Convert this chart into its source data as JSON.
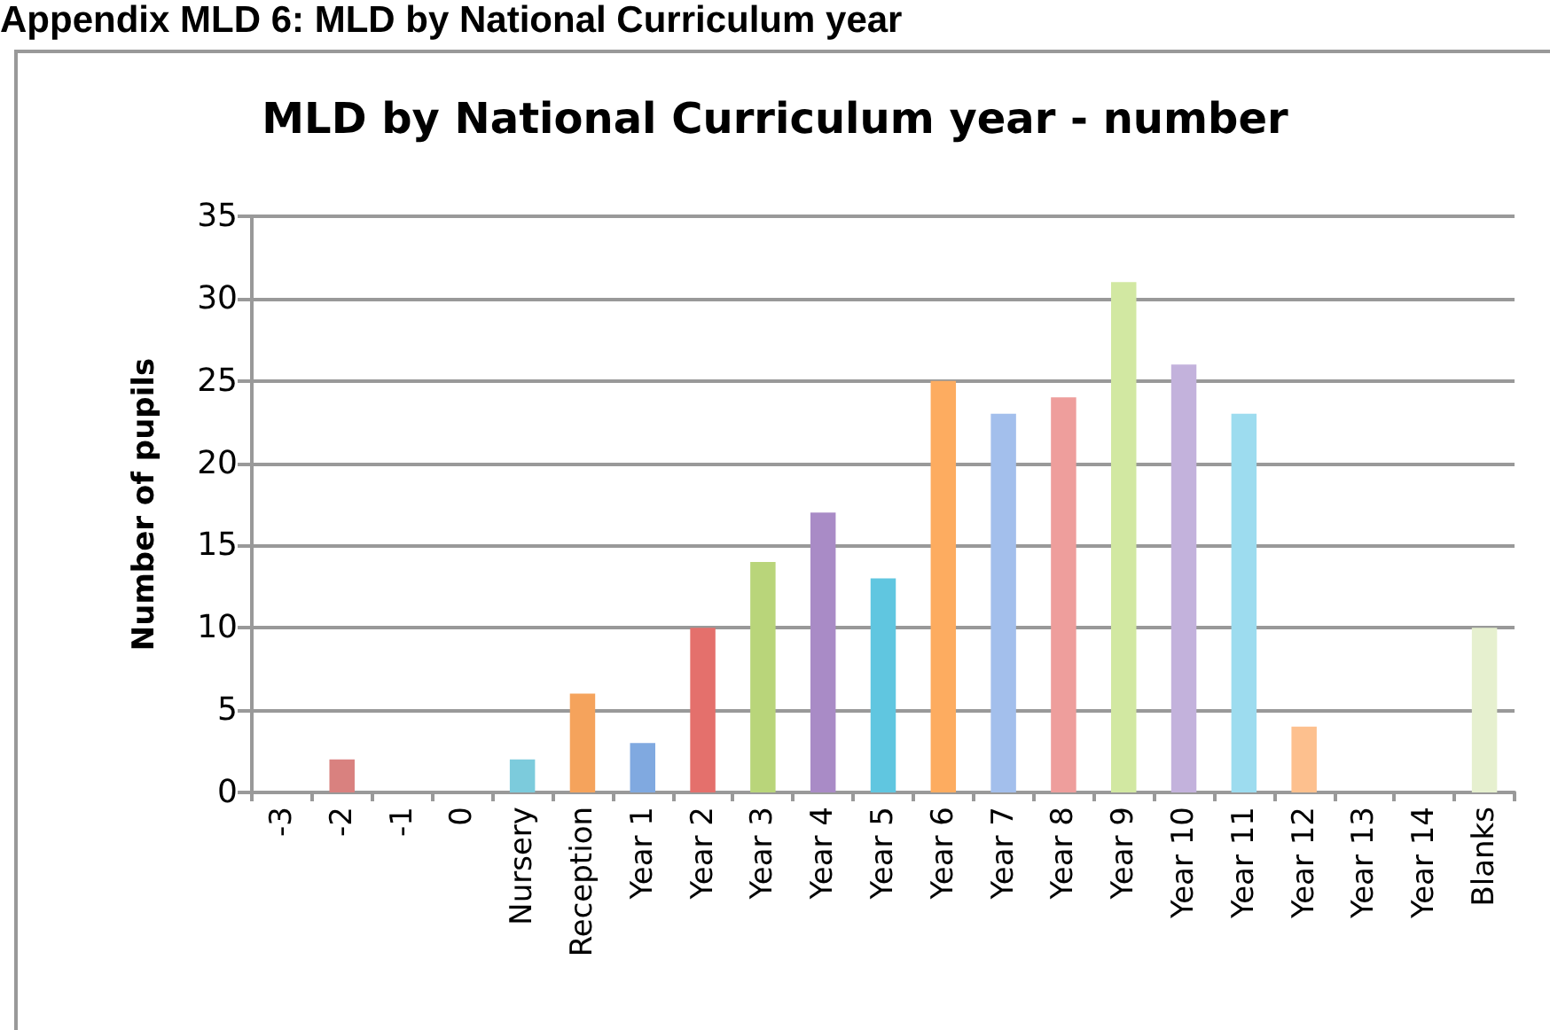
{
  "chart_data": {
    "type": "bar",
    "title": "MLD by National Curriculum year - number",
    "annotations": [
      "Appendix MLD 6: MLD by National Curriculum year"
    ],
    "ylabel": "Number of pupils",
    "categories": [
      "-3",
      "-2",
      "-1",
      "0",
      "Nursery",
      "Reception",
      "Year 1",
      "Year 2",
      "Year 3",
      "Year 4",
      "Year 5",
      "Year 6",
      "Year 7",
      "Year 8",
      "Year 9",
      "Year 10",
      "Year 11",
      "Year 12",
      "Year 13",
      "Year 14",
      "Blanks"
    ],
    "values": [
      0,
      2,
      0,
      0,
      2,
      6,
      3,
      10,
      14,
      17,
      13,
      25,
      23,
      24,
      31,
      26,
      23,
      4,
      0,
      0,
      10
    ],
    "colors": [
      "#4f81bd",
      "#d9817f",
      "#9bbb59",
      "#8064a2",
      "#7ccbdc",
      "#f5a35c",
      "#80a9e0",
      "#e4706c",
      "#b9d57a",
      "#a98bc6",
      "#60c6e0",
      "#fdac60",
      "#a3bfec",
      "#ee9e9c",
      "#d2e8a2",
      "#c3b2dc",
      "#9ddcef",
      "#fdc08e",
      "#b6ccf0",
      "#f4c4c2",
      "#e6f0cf"
    ],
    "ylim": [
      0,
      35
    ],
    "yticks": [
      0,
      5,
      10,
      15,
      20,
      25,
      30,
      35
    ],
    "grid": "y"
  }
}
